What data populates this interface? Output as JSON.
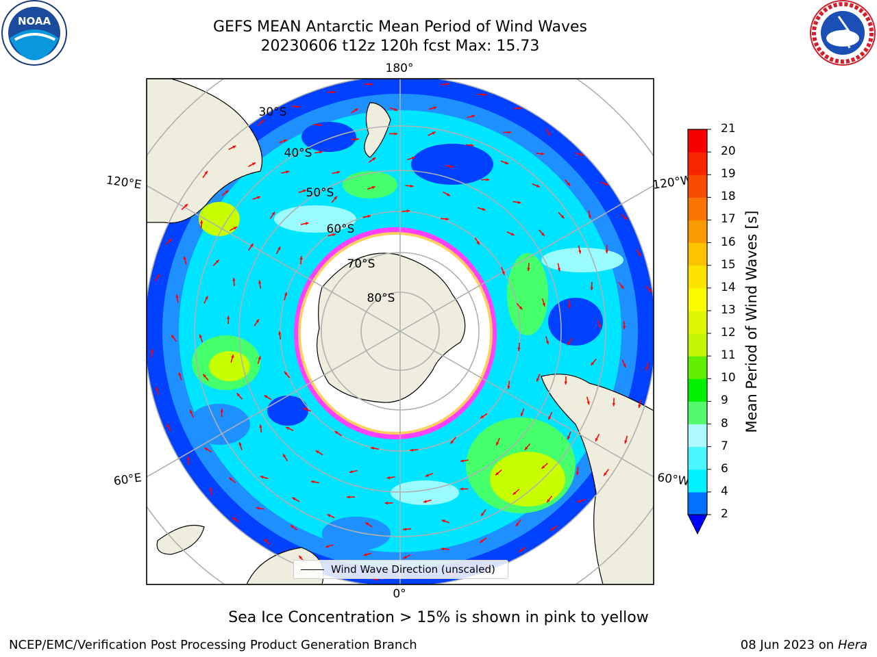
{
  "header": {
    "title_line1": "GEFS MEAN Antarctic Mean Period of Wind Waves",
    "title_line2": "20230606 t12z 120h fcst   Max: 15.73"
  },
  "map": {
    "longitude_labels": {
      "top": "180°",
      "bottom": "0°",
      "left_upper": "120°E",
      "left_lower": "60°E",
      "right_upper": "120°W",
      "right_lower": "60°W"
    },
    "latitude_labels": [
      "30°S",
      "40°S",
      "50°S",
      "60°S",
      "70°S",
      "80°S"
    ],
    "legend_label": "Wind Wave Direction (unscaled)",
    "land_color": "#efedde",
    "ocean_colors": [
      "#0040ff",
      "#1e90ff",
      "#00e5ff",
      "#9afcff",
      "#45ff6b",
      "#c8ff00"
    ]
  },
  "colorbar": {
    "title": "Mean Period of Wind Waves [s]",
    "ticks": [
      "2",
      "4",
      "6",
      "7",
      "8",
      "9",
      "10",
      "11",
      "12",
      "13",
      "14",
      "15",
      "16",
      "17",
      "18",
      "19",
      "20",
      "21"
    ],
    "colors": [
      "#0071ff",
      "#00f2ff",
      "#4cf6ff",
      "#adf9ff",
      "#54f96e",
      "#00f000",
      "#62ee00",
      "#c3f500",
      "#e0f500",
      "#fafa00",
      "#fce300",
      "#fbc300",
      "#f99a00",
      "#f97400",
      "#f84d00",
      "#f72600",
      "#f70000"
    ],
    "under_color": "#0000ff"
  },
  "footer": {
    "caption": "Sea Ice Concentration > 15% is shown in pink to yellow",
    "left": "NCEP/EMC/Verification Post Processing Product Generation Branch",
    "right_date": "08 Jun 2023 on",
    "right_host": "Hera"
  },
  "logos": {
    "left": "noaa-logo",
    "right": "nws-logo"
  }
}
